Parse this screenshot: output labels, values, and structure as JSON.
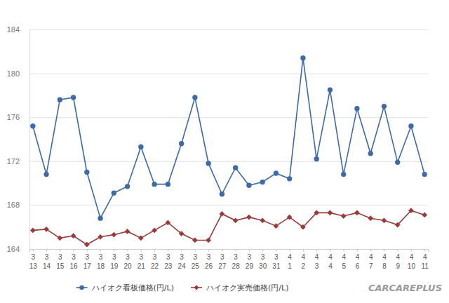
{
  "chart_data": {
    "type": "line",
    "categories": [
      "3\n13",
      "3\n14",
      "3\n15",
      "3\n16",
      "3\n17",
      "3\n18",
      "3\n19",
      "3\n20",
      "3\n21",
      "3\n22",
      "3\n23",
      "3\n24",
      "3\n25",
      "3\n26",
      "3\n27",
      "3\n28",
      "3\n29",
      "3\n30",
      "3\n31",
      "4\n1",
      "4\n2",
      "4\n3",
      "4\n4",
      "4\n5",
      "4\n6",
      "4\n7",
      "4\n8",
      "4\n9",
      "4\n10",
      "4\n11"
    ],
    "series": [
      {
        "name": "ハイオク看板価格(円/L)",
        "color": "#3d6aa8",
        "marker": "circle",
        "values": [
          175.2,
          170.8,
          177.6,
          177.8,
          171.0,
          166.8,
          169.1,
          169.7,
          173.3,
          169.9,
          169.9,
          173.6,
          177.8,
          171.8,
          169.0,
          171.4,
          169.8,
          170.1,
          170.9,
          170.4,
          181.4,
          172.2,
          178.5,
          170.8,
          176.8,
          172.7,
          177.0,
          171.9,
          175.2,
          170.8
        ]
      },
      {
        "name": "ハイオク実売価格(円/L)",
        "color": "#9b3a3a",
        "marker": "diamond",
        "values": [
          165.7,
          165.8,
          165.0,
          165.2,
          164.4,
          165.1,
          165.3,
          165.6,
          165.0,
          165.7,
          166.4,
          165.4,
          164.8,
          164.8,
          167.2,
          166.6,
          166.9,
          166.6,
          166.1,
          166.9,
          166.0,
          167.3,
          167.3,
          167.0,
          167.3,
          166.8,
          166.6,
          166.2,
          167.5,
          167.1
        ]
      }
    ],
    "ylim": [
      164,
      184
    ],
    "yticks": [
      164,
      168,
      172,
      176,
      180,
      184
    ],
    "grid": true,
    "legend": "bottom",
    "annotations": [
      "CARCAREPLUS"
    ]
  }
}
